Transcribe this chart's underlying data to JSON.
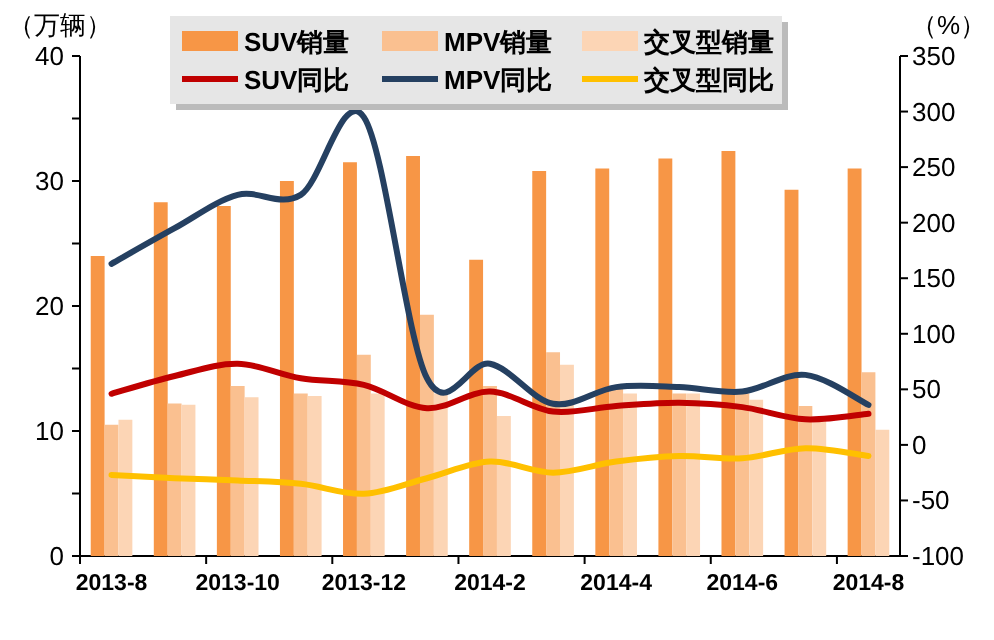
{
  "chart_data": {
    "type": "bar",
    "categories": [
      "2013-8",
      null,
      "2013-10",
      null,
      "2013-12",
      null,
      "2014-2",
      null,
      "2014-4",
      null,
      "2014-6",
      null,
      "2014-8"
    ],
    "ylabel": "（万辆）",
    "y2label": "（%）",
    "ylim": [
      0,
      40
    ],
    "yticks": [
      0,
      {
        "value": 5,
        "label": null
      },
      10,
      {
        "value": 15,
        "label": null
      },
      20,
      {
        "value": 25,
        "label": null
      },
      30,
      {
        "value": 35,
        "label": null
      },
      40
    ],
    "y2lim": [
      -100,
      350
    ],
    "y2ticks": [
      -100,
      -50,
      0,
      50,
      100,
      150,
      200,
      250,
      300,
      350
    ],
    "legend": "top",
    "series": [
      {
        "name": "SUV销量",
        "color": "#f79646",
        "values": [
          24,
          28.3,
          28,
          30,
          31.5,
          32,
          23.7,
          30.8,
          31,
          31.8,
          32.4,
          29.3,
          31
        ]
      },
      {
        "name": "MPV销量",
        "color": "#fac090",
        "values": [
          10.5,
          12.2,
          13.6,
          13,
          16.1,
          19.3,
          13.6,
          16.3,
          13.5,
          13,
          13,
          12,
          14.7
        ]
      },
      {
        "name": "交叉型销量",
        "color": "#fcd5b5",
        "values": [
          10.9,
          12.1,
          12.7,
          12.8,
          13,
          13,
          11.2,
          15.3,
          13,
          13,
          12.5,
          11,
          10.1
        ]
      },
      {
        "name": "SUV同比",
        "type": "line",
        "axis": "y2",
        "color": "#c00000",
        "values": [
          46,
          62,
          73,
          60,
          54,
          33,
          48,
          30,
          35,
          38,
          34,
          23,
          28
        ]
      },
      {
        "name": "MPV同比",
        "type": "line",
        "axis": "y2",
        "color": "#254061",
        "values": [
          163,
          195,
          225,
          225,
          295,
          60,
          73,
          37,
          52,
          52,
          48,
          63,
          36
        ]
      },
      {
        "name": "交叉型同比",
        "type": "line",
        "axis": "y2",
        "color": "#ffc000",
        "values": [
          -27,
          -30,
          -32,
          -35,
          -44,
          -30,
          -15,
          -25,
          -15,
          -10,
          -12,
          -3,
          -10
        ]
      }
    ]
  }
}
